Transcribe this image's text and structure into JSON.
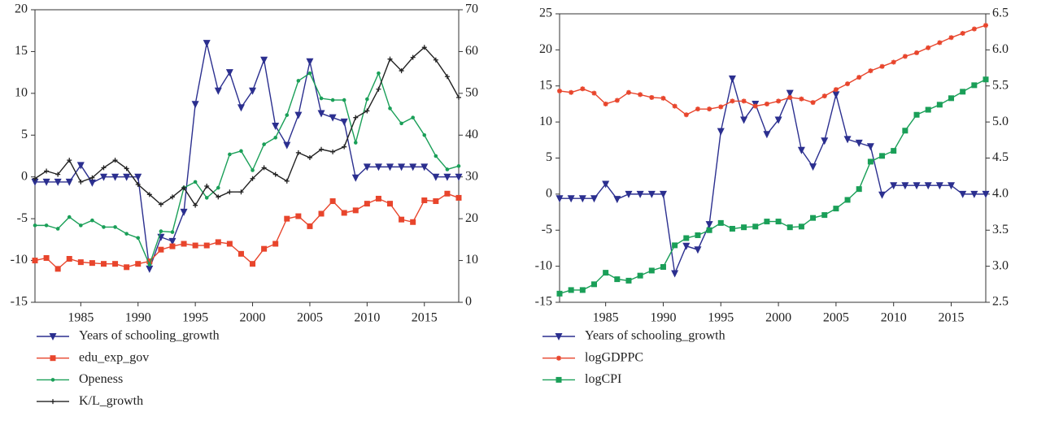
{
  "chart_data": [
    {
      "type": "line",
      "x": [
        1981,
        1982,
        1983,
        1984,
        1985,
        1986,
        1987,
        1988,
        1989,
        1990,
        1991,
        1992,
        1993,
        1994,
        1995,
        1996,
        1997,
        1998,
        1999,
        2000,
        2001,
        2002,
        2003,
        2004,
        2005,
        2006,
        2007,
        2008,
        2009,
        2010,
        2011,
        2012,
        2013,
        2014,
        2015,
        2016,
        2017,
        2018
      ],
      "xlim": [
        1981,
        2018
      ],
      "xticks": [
        1985,
        1990,
        1995,
        2000,
        2005,
        2010,
        2015
      ],
      "ylim": [
        -15,
        20
      ],
      "yticks": [
        -15,
        -10,
        -5,
        0,
        5,
        10,
        15,
        20
      ],
      "y2lim": [
        0,
        70
      ],
      "y2ticks": [
        0,
        10,
        20,
        30,
        40,
        50,
        60,
        70
      ],
      "series": [
        {
          "name": "Years of schooling_growth",
          "color": "#2b2f8f",
          "marker": "triangle",
          "values": [
            -0.6,
            -0.6,
            -0.6,
            -0.6,
            1.4,
            -0.7,
            0,
            0,
            0,
            0,
            -11,
            -7.2,
            -7.7,
            -4.2,
            8.7,
            16,
            10.3,
            12.5,
            8.3,
            10.3,
            14,
            6.1,
            3.8,
            7.4,
            13.8,
            7.6,
            7.1,
            6.6,
            -0.1,
            1.2,
            1.2,
            1.2,
            1.2,
            1.2,
            1.2,
            0,
            0,
            0
          ]
        },
        {
          "name": "edu_exp_gov",
          "color": "#e8452c",
          "marker": "square",
          "axis": "y2",
          "values": [
            10,
            10.6,
            8,
            10.4,
            9.6,
            9.4,
            9.2,
            9.2,
            8.4,
            9.2,
            9.8,
            12.6,
            13.4,
            14,
            13.6,
            13.6,
            14.4,
            14,
            11.6,
            9.2,
            12.8,
            14,
            20,
            20.6,
            18.2,
            21.2,
            24.2,
            21.4,
            22,
            23.6,
            24.8,
            23.6,
            19.8,
            19.2,
            24.4,
            24.2,
            26,
            25
          ]
        },
        {
          "name": "Openess",
          "color": "#1a9f58",
          "marker": "dot",
          "axis": "y2",
          "values": [
            18.4,
            18.4,
            17.6,
            20.4,
            18.4,
            19.6,
            18,
            18,
            16.4,
            15.4,
            9,
            17,
            16.8,
            27.4,
            28.8,
            25,
            27.4,
            35.4,
            36.2,
            31.6,
            37.8,
            39.4,
            44.8,
            53,
            54.8,
            48.8,
            48.4,
            48.4,
            38.2,
            48.6,
            54.8,
            46.4,
            42.8,
            44.2,
            40,
            35,
            31.8,
            32.6
          ]
        },
        {
          "name": "K/L_growth",
          "color": "#222222",
          "marker": "plus",
          "values": [
            -0.2,
            0.7,
            0.3,
            2.0,
            -0.6,
            -0.1,
            1.1,
            2.0,
            1.0,
            -0.9,
            -2.1,
            -3.3,
            -2.4,
            -1.3,
            -3.4,
            -1.1,
            -2.4,
            -1.8,
            -1.8,
            -0.2,
            1.1,
            0.3,
            -0.5,
            2.9,
            2.3,
            3.3,
            3.0,
            3.6,
            7.1,
            7.9,
            10.5,
            14.1,
            12.7,
            14.3,
            15.5,
            14.0,
            12.0,
            9.5
          ]
        }
      ]
    },
    {
      "type": "line",
      "x": [
        1981,
        1982,
        1983,
        1984,
        1985,
        1986,
        1987,
        1988,
        1989,
        1990,
        1991,
        1992,
        1993,
        1994,
        1995,
        1996,
        1997,
        1998,
        1999,
        2000,
        2001,
        2002,
        2003,
        2004,
        2005,
        2006,
        2007,
        2008,
        2009,
        2010,
        2011,
        2012,
        2013,
        2014,
        2015,
        2016,
        2017,
        2018
      ],
      "xlim": [
        1981,
        2018
      ],
      "xticks": [
        1985,
        1990,
        1995,
        2000,
        2005,
        2010,
        2015
      ],
      "ylim": [
        -15,
        25
      ],
      "yticks": [
        -15,
        -10,
        -5,
        0,
        5,
        10,
        15,
        20,
        25
      ],
      "y2lim": [
        2.5,
        6.5
      ],
      "y2ticks": [
        2.5,
        {
          "value": 3,
          "label": "3.0"
        },
        3.5,
        {
          "value": 4,
          "label": "4.0"
        },
        4.5,
        {
          "value": 5,
          "label": "5.0"
        },
        5.5,
        {
          "value": 6,
          "label": "6.0"
        },
        6.5
      ],
      "series": [
        {
          "name": "Years of schooling_growth",
          "color": "#2b2f8f",
          "marker": "triangle",
          "values": [
            -0.6,
            -0.6,
            -0.6,
            -0.6,
            1.4,
            -0.7,
            0,
            0,
            0,
            0,
            -11,
            -7.2,
            -7.7,
            -4.2,
            8.7,
            16,
            10.3,
            12.5,
            8.3,
            10.3,
            14,
            6.1,
            3.8,
            7.4,
            13.8,
            7.6,
            7.1,
            6.6,
            -0.1,
            1.2,
            1.2,
            1.2,
            1.2,
            1.2,
            1.2,
            0,
            0,
            0
          ]
        },
        {
          "name": "logGDPPC",
          "color": "#e8452c",
          "marker": "star",
          "axis": "y2",
          "values": [
            5.43,
            5.41,
            5.46,
            5.4,
            5.25,
            5.3,
            5.41,
            5.38,
            5.34,
            5.33,
            5.22,
            5.1,
            5.18,
            5.18,
            5.21,
            5.29,
            5.29,
            5.22,
            5.25,
            5.29,
            5.34,
            5.32,
            5.27,
            5.36,
            5.45,
            5.53,
            5.62,
            5.71,
            5.77,
            5.83,
            5.91,
            5.96,
            6.03,
            6.1,
            6.17,
            6.23,
            6.29,
            6.34
          ]
        },
        {
          "name": "logCPI",
          "color": "#1a9f58",
          "marker": "square",
          "axis": "y2",
          "values": [
            2.62,
            2.67,
            2.67,
            2.75,
            2.91,
            2.82,
            2.8,
            2.87,
            2.94,
            2.99,
            3.29,
            3.39,
            3.43,
            3.5,
            3.6,
            3.52,
            3.54,
            3.55,
            3.62,
            3.62,
            3.54,
            3.55,
            3.67,
            3.71,
            3.8,
            3.92,
            4.07,
            4.45,
            4.53,
            4.6,
            4.88,
            5.1,
            5.17,
            5.24,
            5.33,
            5.42,
            5.51,
            5.59
          ]
        }
      ]
    }
  ]
}
